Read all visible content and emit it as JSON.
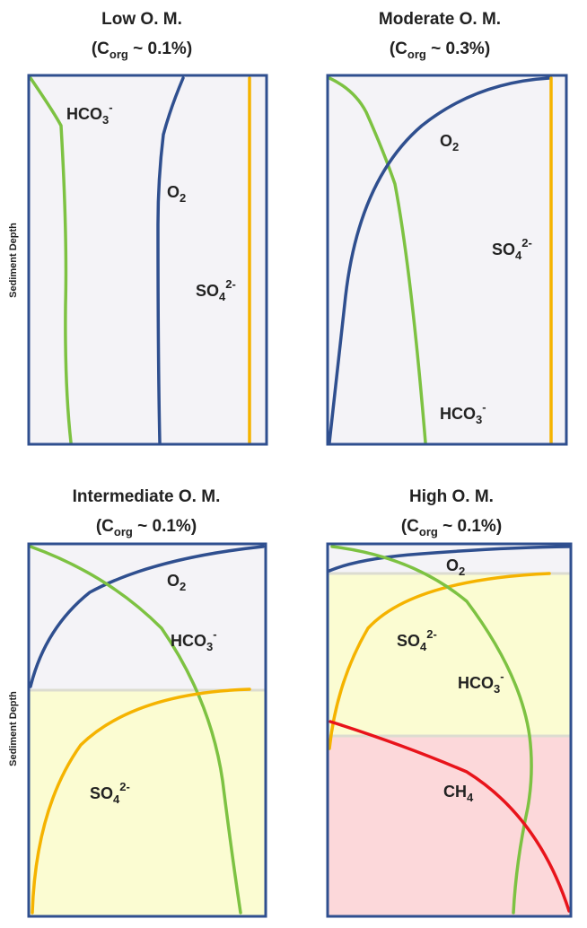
{
  "y_axis_label": "Sediment Depth",
  "colors": {
    "frame": "#2f4f8f",
    "o2": "#2f4f8f",
    "hco3": "#7dc242",
    "so4": "#f5b300",
    "ch4": "#e8141b",
    "oxic_zone": "#f4f3f7",
    "sulfate_zone": "#fbfcd2",
    "methane_zone": "#fcd8da"
  },
  "panels": [
    {
      "title_line1": "Low O. M.",
      "c_org": "C",
      "c_org_sub": "org",
      "c_org_value": " ~ 0.1%)",
      "open_paren": "(",
      "labels": {
        "o2": "O",
        "o2_sub": "2",
        "hco3": "HCO",
        "hco3_sub": "3",
        "hco3_sup": "-",
        "so4": "SO",
        "so4_sub": "4",
        "so4_sup": "2-"
      }
    },
    {
      "title_line1": "Moderate O. M.",
      "c_org": "C",
      "c_org_sub": "org",
      "c_org_value": " ~ 0.3%)",
      "open_paren": "(",
      "labels": {
        "o2": "O",
        "o2_sub": "2",
        "hco3": "HCO",
        "hco3_sub": "3",
        "hco3_sup": "-",
        "so4": "SO",
        "so4_sub": "4",
        "so4_sup": "2-"
      }
    },
    {
      "title_line1": "Intermediate O. M.",
      "c_org": "C",
      "c_org_sub": "org",
      "c_org_value": " ~ 0.1%)",
      "open_paren": "(",
      "labels": {
        "o2": "O",
        "o2_sub": "2",
        "hco3": "HCO",
        "hco3_sub": "3",
        "hco3_sup": "-",
        "so4": "SO",
        "so4_sub": "4",
        "so4_sup": "2-"
      }
    },
    {
      "title_line1": "High O. M.",
      "c_org": "C",
      "c_org_sub": "org",
      "c_org_value": " ~ 0.1%)",
      "open_paren": "(",
      "labels": {
        "o2": "O",
        "o2_sub": "2",
        "hco3": "HCO",
        "hco3_sub": "3",
        "hco3_sup": "-",
        "so4": "SO",
        "so4_sub": "4",
        "so4_sup": "2-",
        "ch4": "CH",
        "ch4_sub": "4"
      }
    }
  ]
}
